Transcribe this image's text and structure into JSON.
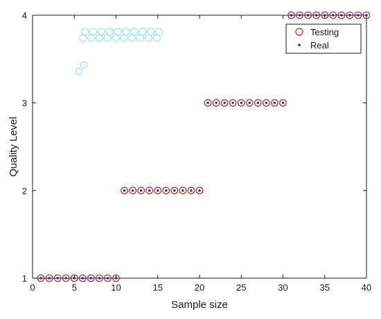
{
  "chart_data": {
    "type": "scatter",
    "xlabel": "Sample size",
    "ylabel": "Quality Level",
    "xlim": [
      0,
      40
    ],
    "ylim": [
      1,
      4
    ],
    "xticks": [
      "0",
      "5",
      "10",
      "15",
      "20",
      "25",
      "30",
      "35",
      "40"
    ],
    "yticks": [
      "1",
      "2",
      "3",
      "4"
    ],
    "grid": false,
    "legend_position": "top-right",
    "x": [
      1,
      2,
      3,
      4,
      5,
      6,
      7,
      8,
      9,
      10,
      11,
      12,
      13,
      14,
      15,
      16,
      17,
      18,
      19,
      20,
      21,
      22,
      23,
      24,
      25,
      26,
      27,
      28,
      29,
      30,
      31,
      32,
      33,
      34,
      35,
      36,
      37,
      38,
      39,
      40
    ],
    "series": [
      {
        "name": "Testing",
        "marker": "circle-open",
        "color": "#a52a2a",
        "values": [
          1,
          1,
          1,
          1,
          1,
          1,
          1,
          1,
          1,
          1,
          2,
          2,
          2,
          2,
          2,
          2,
          2,
          2,
          2,
          2,
          3,
          3,
          3,
          3,
          3,
          3,
          3,
          3,
          3,
          3,
          4,
          4,
          4,
          4,
          4,
          4,
          4,
          4,
          4,
          4
        ]
      },
      {
        "name": "Real",
        "marker": "dot",
        "color": "#1f1fd6",
        "values": [
          1,
          1,
          1,
          1,
          1,
          1,
          1,
          1,
          1,
          1,
          2,
          2,
          2,
          2,
          2,
          2,
          2,
          2,
          2,
          2,
          3,
          3,
          3,
          3,
          3,
          3,
          3,
          3,
          3,
          3,
          4,
          4,
          4,
          4,
          4,
          4,
          4,
          4,
          4,
          4
        ]
      }
    ],
    "colors": {
      "axis": "#1a1a1a",
      "legend_border": "#1a1a1a",
      "artifact": "#9fe3ee"
    }
  }
}
